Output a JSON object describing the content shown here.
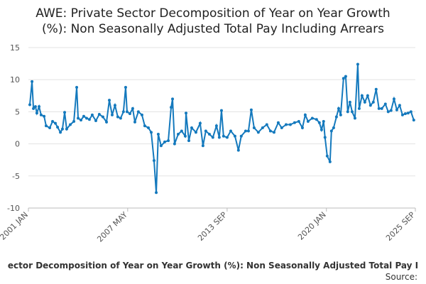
{
  "chart_data": {
    "type": "line",
    "title": [
      "AWE: Private Sector Decomposition of Year on Year Growth",
      "(%): Non Seasonally Adjusted Total Pay Including Arrears"
    ],
    "caption": "ector Decomposition of Year on Year Growth (%): Non Seasonally Adjusted Total Pay I",
    "source": "Source:",
    "xlim": [
      2001,
      2025.67
    ],
    "xticks": [
      {
        "value": 2001,
        "label": "2001 JAN"
      },
      {
        "value": 2007.33,
        "label": "2007 MAY"
      },
      {
        "value": 2013.67,
        "label": "2013 SEP"
      },
      {
        "value": 2020,
        "label": "2020 JAN"
      },
      {
        "value": 2025.67,
        "label": "2025 SEP"
      }
    ],
    "ylim": [
      -10,
      15
    ],
    "yticks": [
      15,
      10,
      5,
      0,
      -5,
      -10
    ],
    "grid": true,
    "series": [
      {
        "color": "#1479bd",
        "x": [
          2001.09,
          2001.23,
          2001.32,
          2001.45,
          2001.54,
          2001.68,
          2001.81,
          2002.0,
          2002.13,
          2002.36,
          2002.54,
          2002.72,
          2002.86,
          2003.04,
          2003.17,
          2003.31,
          2003.44,
          2003.67,
          2003.9,
          2004.08,
          2004.17,
          2004.35,
          2004.53,
          2004.71,
          2004.89,
          2005.07,
          2005.3,
          2005.52,
          2005.75,
          2005.98,
          2006.16,
          2006.34,
          2006.52,
          2006.7,
          2006.88,
          2007.06,
          2007.2,
          2007.29,
          2007.47,
          2007.65,
          2007.79,
          2008.01,
          2008.24,
          2008.42,
          2008.65,
          2008.83,
          2009.01,
          2009.15,
          2009.28,
          2009.46,
          2009.69,
          2009.92,
          2010.1,
          2010.19,
          2010.32,
          2010.55,
          2010.77,
          2011.0,
          2011.05,
          2011.23,
          2011.41,
          2011.68,
          2011.95,
          2012.13,
          2012.31,
          2012.54,
          2012.76,
          2012.99,
          2013.17,
          2013.31,
          2013.44,
          2013.67,
          2013.9,
          2014.17,
          2014.39,
          2014.57,
          2014.85,
          2015.03,
          2015.21,
          2015.39,
          2015.66,
          2015.93,
          2016.2,
          2016.43,
          2016.66,
          2016.93,
          2017.15,
          2017.43,
          2017.7,
          2017.97,
          2018.24,
          2018.47,
          2018.65,
          2018.83,
          2019.1,
          2019.37,
          2019.55,
          2019.69,
          2019.82,
          2019.91,
          2020.05,
          2020.23,
          2020.32,
          2020.46,
          2020.64,
          2020.78,
          2020.91,
          2021.09,
          2021.23,
          2021.36,
          2021.5,
          2021.64,
          2021.82,
          2022.0,
          2022.09,
          2022.27,
          2022.45,
          2022.63,
          2022.81,
          2022.99,
          2023.17,
          2023.35,
          2023.53,
          2023.76,
          2023.94,
          2024.12,
          2024.31,
          2024.49,
          2024.67,
          2024.85,
          2025.03,
          2025.21,
          2025.39,
          2025.57
        ],
        "values": [
          6.1,
          9.7,
          5.5,
          5.8,
          4.8,
          5.8,
          4.5,
          4.3,
          2.8,
          2.5,
          3.5,
          3.2,
          2.6,
          1.8,
          2.3,
          4.9,
          2.3,
          3.0,
          3.5,
          8.8,
          4.0,
          3.7,
          4.3,
          4.0,
          3.8,
          4.5,
          3.6,
          4.6,
          4.2,
          3.4,
          6.8,
          4.5,
          6.0,
          4.2,
          4.0,
          5.0,
          8.8,
          5.0,
          4.7,
          5.5,
          3.4,
          5.0,
          4.5,
          2.8,
          2.5,
          1.8,
          -2.6,
          -7.6,
          1.5,
          -0.3,
          0.3,
          0.5,
          5.7,
          7.0,
          0.0,
          1.5,
          2.0,
          1.2,
          4.8,
          0.5,
          2.5,
          1.8,
          3.2,
          -0.3,
          2.0,
          1.5,
          1.0,
          2.8,
          1.0,
          5.2,
          1.2,
          1.0,
          2.0,
          1.2,
          -1.0,
          1.2,
          2.0,
          2.0,
          5.3,
          2.5,
          1.8,
          2.5,
          3.0,
          2.0,
          1.8,
          3.3,
          2.5,
          3.0,
          3.0,
          3.3,
          3.5,
          2.5,
          4.5,
          3.5,
          4.0,
          3.8,
          3.3,
          2.2,
          3.5,
          1.0,
          -1.9,
          -2.8,
          2.0,
          2.5,
          4.2,
          5.5,
          4.5,
          10.2,
          10.5,
          5.0,
          6.5,
          5.0,
          4.0,
          12.4,
          5.5,
          7.5,
          6.5,
          7.5,
          6.0,
          6.5,
          8.5,
          5.5,
          5.5,
          6.2,
          5.0,
          5.2,
          7.0,
          5.3,
          6.0,
          4.5,
          4.7,
          4.8,
          5.0,
          3.7
        ]
      }
    ]
  }
}
